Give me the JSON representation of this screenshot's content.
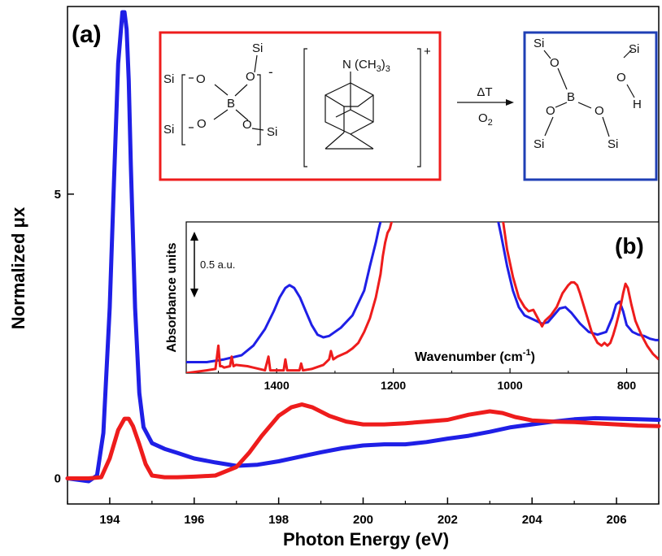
{
  "colors": {
    "blue": "#1f1fe6",
    "red": "#ee1c1c",
    "axis": "#000000"
  },
  "chart_data": [
    {
      "type": "line",
      "panel_label": "(a)",
      "xlabel": "Photon Energy (eV)",
      "ylabel": "Normalized μx",
      "xlim": [
        193,
        207
      ],
      "ylim": [
        -0.45,
        8.3
      ],
      "x_ticks": [
        "194",
        "196",
        "198",
        "200",
        "202",
        "204",
        "206"
      ],
      "y_ticks": [
        "0",
        "5"
      ],
      "grid": false,
      "series": [
        {
          "color": "#1f1fe6",
          "x": [
            193,
            193.5,
            193.7,
            193.85,
            194.0,
            194.1,
            194.2,
            194.3,
            194.35,
            194.4,
            194.45,
            194.5,
            194.6,
            194.7,
            194.8,
            195.0,
            195.3,
            195.6,
            196.0,
            196.5,
            197.0,
            197.5,
            198.0,
            198.5,
            199.0,
            199.5,
            200.0,
            200.5,
            201.0,
            201.5,
            202.0,
            202.5,
            203.0,
            203.5,
            204.0,
            204.5,
            205.0,
            205.5,
            206.0,
            206.5,
            207.0
          ],
          "y": [
            0.0,
            -0.05,
            0.05,
            0.8,
            3.0,
            5.2,
            7.3,
            8.2,
            8.2,
            7.9,
            7.0,
            5.5,
            3.0,
            1.5,
            0.9,
            0.62,
            0.52,
            0.45,
            0.35,
            0.28,
            0.22,
            0.24,
            0.3,
            0.38,
            0.46,
            0.53,
            0.58,
            0.6,
            0.6,
            0.64,
            0.7,
            0.75,
            0.82,
            0.9,
            0.95,
            1.0,
            1.04,
            1.06,
            1.05,
            1.04,
            1.03
          ]
        },
        {
          "color": "#ee1c1c",
          "x": [
            193,
            193.5,
            193.8,
            194.0,
            194.2,
            194.35,
            194.45,
            194.55,
            194.7,
            194.85,
            195.0,
            195.3,
            195.6,
            196.0,
            196.5,
            197.0,
            197.3,
            197.6,
            198.0,
            198.3,
            198.55,
            198.8,
            199.2,
            199.6,
            200.0,
            200.5,
            201.0,
            201.5,
            202.0,
            202.5,
            203.0,
            203.3,
            203.6,
            204.0,
            204.5,
            205.0,
            205.5,
            206.0,
            206.5,
            207.0
          ],
          "y": [
            0.0,
            0.0,
            0.02,
            0.35,
            0.85,
            1.05,
            1.05,
            0.92,
            0.6,
            0.25,
            0.05,
            0.02,
            0.02,
            0.03,
            0.05,
            0.2,
            0.45,
            0.75,
            1.1,
            1.25,
            1.3,
            1.25,
            1.1,
            1.0,
            0.95,
            0.95,
            0.97,
            1.0,
            1.03,
            1.12,
            1.18,
            1.15,
            1.08,
            1.02,
            1.0,
            0.99,
            0.97,
            0.95,
            0.93,
            0.92
          ]
        }
      ]
    },
    {
      "type": "line",
      "panel_label": "(b)",
      "xlabel": "Wavenumber (cm",
      "xlabel_sup": "-1",
      "xlabel_close": ")",
      "ylabel": "Absorbance units",
      "scale_bar_label": "0.5 a.u.",
      "xlim": [
        1555,
        745
      ],
      "ylim": [
        0,
        1.1
      ],
      "x_ticks": [
        "1400",
        "1200",
        "1000",
        "800"
      ],
      "x_ticks_values": [
        1400,
        1200,
        1000,
        800
      ],
      "series": [
        {
          "color": "#1f1fe6",
          "x": [
            1555,
            1520,
            1490,
            1460,
            1440,
            1420,
            1405,
            1395,
            1385,
            1378,
            1370,
            1360,
            1350,
            1340,
            1330,
            1320,
            1310,
            1290,
            1270,
            1250,
            1240,
            1230,
            1225,
            1222,
            1220
          ],
          "y": [
            0.08,
            0.08,
            0.1,
            0.13,
            0.2,
            0.32,
            0.45,
            0.55,
            0.62,
            0.64,
            0.62,
            0.55,
            0.45,
            0.35,
            0.28,
            0.26,
            0.27,
            0.33,
            0.42,
            0.6,
            0.78,
            0.95,
            1.05,
            1.1,
            1.2
          ]
        },
        {
          "color": "#1f1fe6",
          "x": [
            1025,
            1015,
            1005,
            995,
            985,
            975,
            965,
            955,
            945,
            935,
            925,
            915,
            905,
            895,
            880,
            865,
            850,
            835,
            825,
            818,
            812,
            806,
            800,
            790,
            780,
            770,
            760,
            750,
            745
          ],
          "y": [
            1.2,
            1.0,
            0.78,
            0.6,
            0.48,
            0.42,
            0.4,
            0.38,
            0.36,
            0.37,
            0.42,
            0.47,
            0.48,
            0.44,
            0.36,
            0.3,
            0.28,
            0.3,
            0.4,
            0.5,
            0.52,
            0.45,
            0.35,
            0.3,
            0.28,
            0.27,
            0.25,
            0.24,
            0.24
          ]
        },
        {
          "color": "#ee1c1c",
          "x": [
            1555,
            1520,
            1505,
            1500,
            1497,
            1494,
            1490,
            1480,
            1477,
            1474,
            1470,
            1450,
            1440,
            1420,
            1414,
            1411,
            1408,
            1400,
            1388,
            1385,
            1382,
            1370,
            1361,
            1358,
            1355,
            1340,
            1320,
            1310,
            1307,
            1303,
            1296,
            1280,
            1270,
            1260,
            1250,
            1240,
            1230,
            1222,
            1218,
            1214,
            1210,
            1206,
            1203,
            1200
          ],
          "y": [
            0.0,
            0.02,
            0.03,
            0.2,
            0.05,
            0.05,
            0.04,
            0.05,
            0.12,
            0.05,
            0.06,
            0.05,
            0.04,
            0.02,
            0.12,
            0.02,
            0.02,
            0.02,
            0.02,
            0.1,
            0.02,
            0.02,
            0.02,
            0.07,
            0.02,
            0.03,
            0.06,
            0.1,
            0.16,
            0.1,
            0.12,
            0.15,
            0.18,
            0.22,
            0.3,
            0.4,
            0.55,
            0.72,
            0.85,
            0.95,
            1.02,
            1.05,
            1.1,
            1.2
          ]
        },
        {
          "color": "#ee1c1c",
          "x": [
            1015,
            1005,
            995,
            985,
            975,
            968,
            960,
            955,
            950,
            945,
            940,
            930,
            920,
            910,
            900,
            895,
            890,
            885,
            880,
            870,
            860,
            850,
            843,
            838,
            833,
            828,
            823,
            818,
            812,
            806,
            802,
            798,
            792,
            785,
            775,
            765,
            755,
            745
          ],
          "y": [
            1.2,
            0.9,
            0.7,
            0.55,
            0.48,
            0.45,
            0.46,
            0.42,
            0.38,
            0.34,
            0.38,
            0.42,
            0.48,
            0.58,
            0.64,
            0.66,
            0.66,
            0.64,
            0.58,
            0.44,
            0.3,
            0.22,
            0.2,
            0.22,
            0.2,
            0.22,
            0.28,
            0.35,
            0.45,
            0.58,
            0.65,
            0.62,
            0.5,
            0.38,
            0.28,
            0.2,
            0.14,
            0.1
          ]
        }
      ]
    }
  ],
  "scheme": {
    "arrow_top": "ΔT",
    "arrow_bottom": "O",
    "arrow_bottom_sub": "2",
    "left": {
      "si_top": "Si",
      "si_left_top": "Si",
      "si_left_bottom": "Si",
      "si_right_bottom": "Si",
      "o_top_left": "O",
      "o_top_right": "O",
      "o_bottom_left": "O",
      "o_bottom_right": "O",
      "b": "B",
      "charge": "-"
    },
    "cation": {
      "amine": "N (CH",
      "amine_sub": "3",
      "amine_close": ")",
      "amine_sub2": "3",
      "charge": "+"
    },
    "right": {
      "si_top": "Si",
      "o_top": "O",
      "b": "B",
      "o_left": "O",
      "o_right": "O",
      "si_left": "Si",
      "si_right": "Si",
      "si_oh": "Si",
      "o_oh": "O",
      "h": "H"
    }
  }
}
